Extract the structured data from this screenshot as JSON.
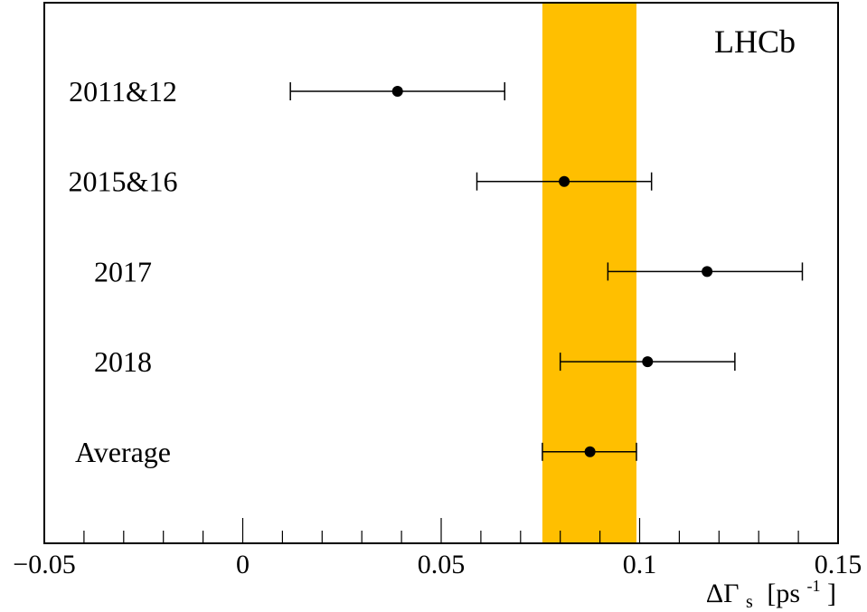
{
  "chart_data": {
    "type": "scatter",
    "experiment_label": "LHCb",
    "xlabel_main": "ΔΓ",
    "xlabel_sub": "s",
    "xlabel_unit": "[ps",
    "xlabel_sup": "-1",
    "xlabel_close": "]",
    "xlim": [
      -0.05,
      0.15
    ],
    "x_ticks": [
      -0.05,
      0,
      0.05,
      0.1,
      0.15
    ],
    "x_tick_labels": [
      "−0.05",
      "0",
      "0.05",
      "0.1",
      "0.15"
    ],
    "band": {
      "low": 0.0755,
      "high": 0.0992,
      "color": "#ffbf00"
    },
    "points": [
      {
        "label": "2011&12",
        "value": 0.039,
        "err_low": 0.027,
        "err_high": 0.027
      },
      {
        "label": "2015&16",
        "value": 0.081,
        "err_low": 0.022,
        "err_high": 0.022
      },
      {
        "label": "2017",
        "value": 0.117,
        "err_low": 0.025,
        "err_high": 0.024
      },
      {
        "label": "2018",
        "value": 0.102,
        "err_low": 0.022,
        "err_high": 0.022
      },
      {
        "label": "Average",
        "value": 0.0875,
        "err_low": 0.012,
        "err_high": 0.0117
      }
    ]
  }
}
